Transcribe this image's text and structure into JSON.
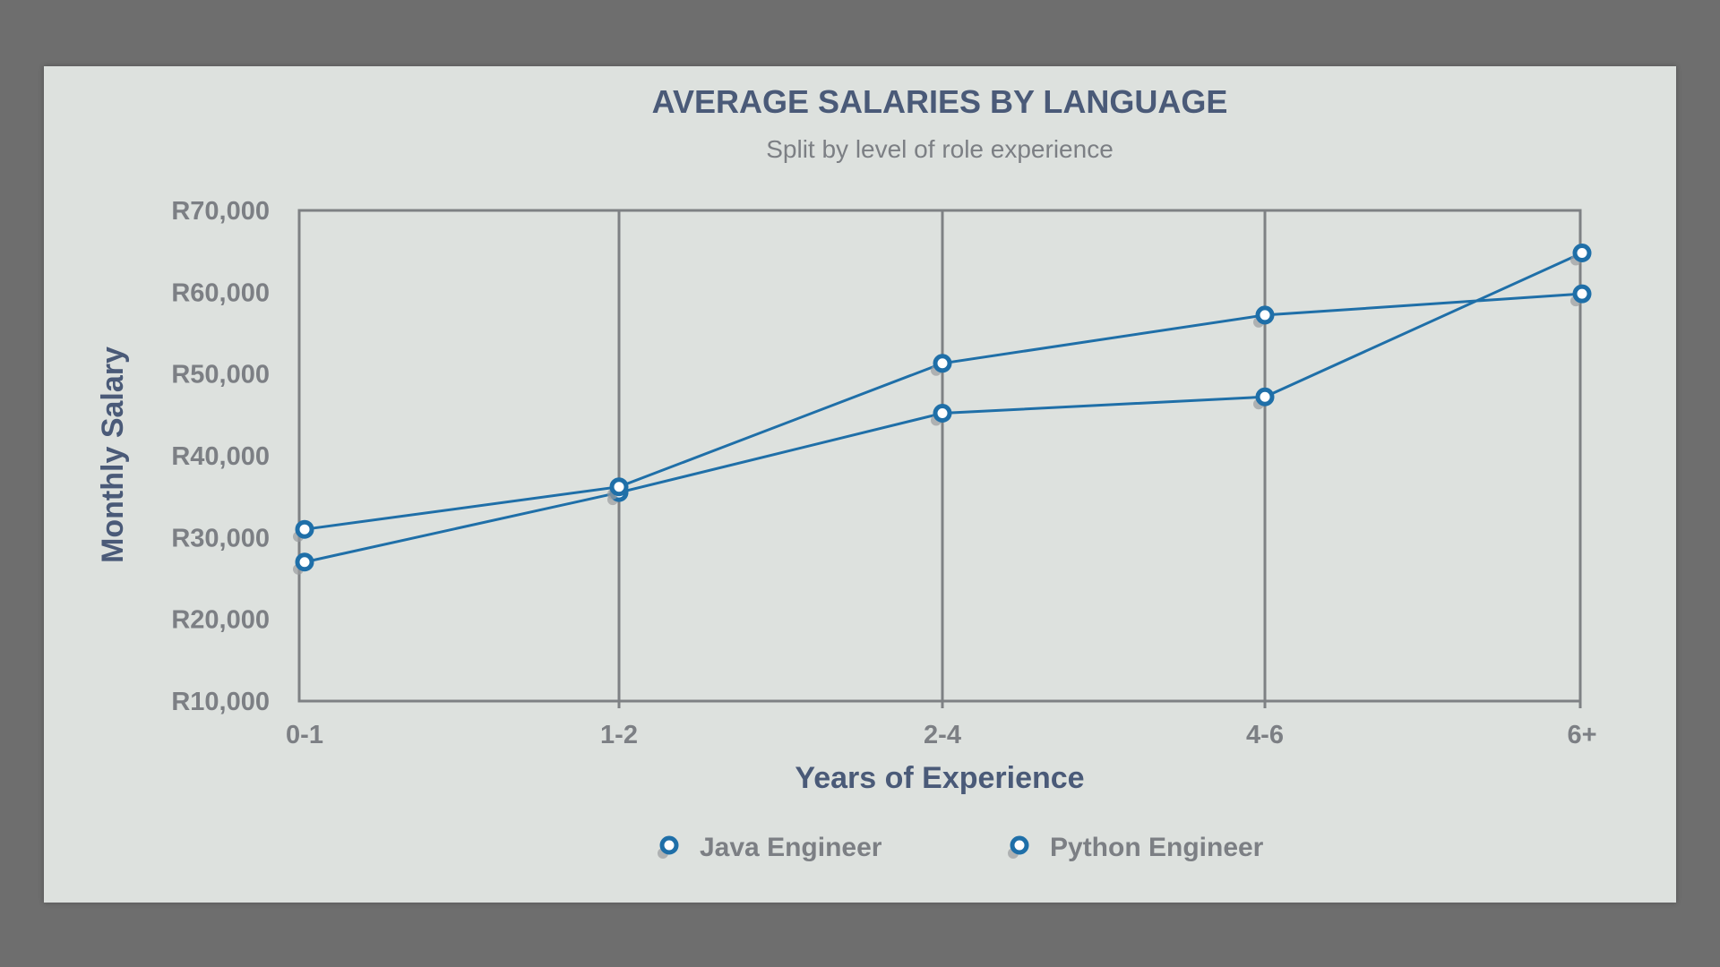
{
  "chart_data": {
    "type": "line",
    "title": "AVERAGE SALARIES BY LANGUAGE",
    "subtitle": "Split by level of role experience",
    "xlabel": "Years of Experience",
    "ylabel": "Monthly Salary",
    "categories": [
      "0-1",
      "1-2",
      "2-4",
      "4-6",
      "6+"
    ],
    "y_ticks": [
      "R70,000",
      "R60,000",
      "R50,000",
      "R40,000",
      "R30,000",
      "R20,000",
      "R10,000"
    ],
    "y_tick_values": [
      70000,
      60000,
      50000,
      40000,
      30000,
      20000,
      10000
    ],
    "ylim": [
      10000,
      70000
    ],
    "grid": "vertical",
    "legend_position": "bottom",
    "series": [
      {
        "name": "Java Engineer",
        "values": [
          27000,
          35500,
          45200,
          47200,
          64800
        ]
      },
      {
        "name": "Python Engineer",
        "values": [
          31000,
          36200,
          51300,
          57200,
          59800
        ]
      }
    ],
    "colors": {
      "line": "#1f6fa8",
      "marker_fill": "#ffffff",
      "grid": "#7e8184",
      "card": "#dde1de"
    }
  }
}
